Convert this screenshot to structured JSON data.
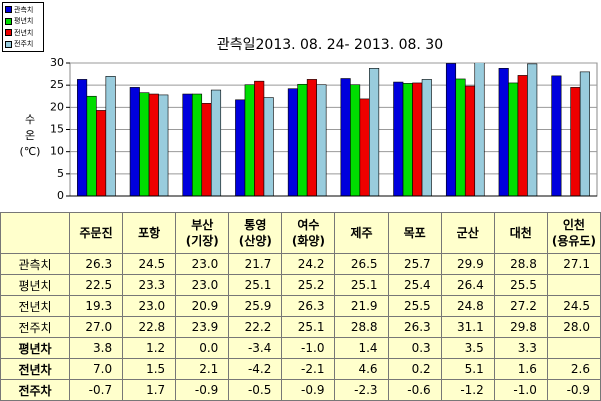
{
  "chart_data": {
    "type": "bar",
    "title": "관측일2013. 08. 24-  2013. 08. 30",
    "ylabel": "수\n온\n(℃)",
    "categories": [
      "주문진",
      "포항",
      "부산\n(기장)",
      "통영\n(산양)",
      "여수\n(화양)",
      "제주",
      "목포",
      "군산",
      "대천",
      "인천\n(용유도)"
    ],
    "series": [
      {
        "name": "관측치",
        "color": "#0000dd",
        "values": [
          26.3,
          24.5,
          23.0,
          21.7,
          24.2,
          26.5,
          25.7,
          29.9,
          28.8,
          27.1
        ],
        "value_labels": [
          "26.3",
          "24.5",
          "23.0",
          "21.7",
          "24.2",
          "26.5",
          "25.7",
          "29.9",
          "28.8",
          "27.1"
        ]
      },
      {
        "name": "평년치",
        "color": "#00dd00",
        "values": [
          22.5,
          23.3,
          23.0,
          25.1,
          25.2,
          25.1,
          25.4,
          26.4,
          25.5,
          null
        ],
        "value_labels": [
          "22.5",
          "23.3",
          "23.0",
          "25.1",
          "25.2",
          "25.1",
          "25.4",
          "26.4",
          "25.5",
          null
        ]
      },
      {
        "name": "전년치",
        "color": "#ee0000",
        "values": [
          19.3,
          23.0,
          20.9,
          25.9,
          26.3,
          21.9,
          25.5,
          24.8,
          27.2,
          24.5
        ],
        "value_labels": [
          "19.3",
          "23.0",
          "20.9",
          "25.9",
          "26.3",
          "21.9",
          "25.5",
          "24.8",
          "27.2",
          "24.5"
        ]
      },
      {
        "name": "전주치",
        "color": "#99ccdd",
        "values": [
          27.0,
          22.8,
          23.9,
          22.2,
          25.1,
          28.8,
          26.3,
          31.1,
          29.8,
          28.0
        ],
        "value_labels": [
          "27.0",
          "22.8",
          "23.9",
          "22.2",
          "25.1",
          "28.8",
          "26.3",
          "31.1",
          "29.8",
          "28.0"
        ]
      }
    ],
    "ylim": [
      0,
      30
    ],
    "yticks": [
      0,
      5,
      10,
      15,
      20,
      25,
      30
    ],
    "grid": true
  },
  "table": {
    "rows": [
      {
        "label": "평년차",
        "cells": [
          "3.8",
          "1.2",
          "0.0",
          "-3.4",
          "-1.0",
          "1.4",
          "0.3",
          "3.5",
          "3.3",
          null
        ]
      },
      {
        "label": "전년차",
        "cells": [
          "7.0",
          "1.5",
          "2.1",
          "-4.2",
          "-2.1",
          "4.6",
          "0.2",
          "5.1",
          "1.6",
          "2.6"
        ]
      },
      {
        "label": "전주차",
        "cells": [
          "-0.7",
          "1.7",
          "-0.9",
          "-0.5",
          "-0.9",
          "-2.3",
          "-0.6",
          "-1.2",
          "-1.0",
          "-0.9"
        ]
      }
    ]
  }
}
